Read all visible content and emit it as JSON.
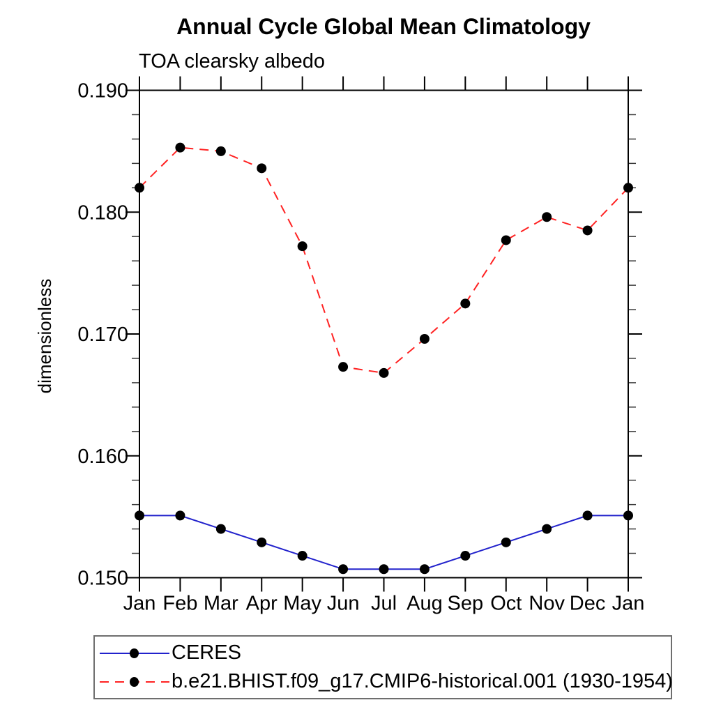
{
  "chart_data": {
    "type": "line",
    "title": "Annual Cycle Global Mean Climatology",
    "subtitle": "TOA clearsky albedo",
    "ylabel": "dimensionless",
    "xlabel": "",
    "x_categories": [
      "Jan",
      "Feb",
      "Mar",
      "Apr",
      "May",
      "Jun",
      "Jul",
      "Aug",
      "Sep",
      "Oct",
      "Nov",
      "Dec",
      "Jan"
    ],
    "ylim": [
      0.15,
      0.19
    ],
    "ytick_major_values": [
      0.15,
      0.16,
      0.17,
      0.18,
      0.19
    ],
    "ytick_major_labels": [
      "0.150",
      "0.160",
      "0.170",
      "0.180",
      "0.190"
    ],
    "ytick_minor_step": 0.002,
    "grid": false,
    "legend_position": "bottom-left",
    "axis_color": "#000000",
    "series": [
      {
        "name": "CERES",
        "color": "#2222cc",
        "line_style": "solid",
        "marker": "circle",
        "marker_color": "#000000",
        "values": [
          0.1551,
          0.1551,
          0.154,
          0.1529,
          0.1518,
          0.1507,
          0.1507,
          0.1507,
          0.1518,
          0.1529,
          0.154,
          0.1551,
          0.1551
        ]
      },
      {
        "name": "b.e21.BHIST.f09_g17.CMIP6-historical.001 (1930-1954)",
        "color": "#ff2222",
        "line_style": "dashed",
        "marker": "circle",
        "marker_color": "#000000",
        "values": [
          0.182,
          0.1853,
          0.185,
          0.1836,
          0.1772,
          0.1673,
          0.1668,
          0.1696,
          0.1725,
          0.1777,
          0.1796,
          0.1785,
          0.182
        ]
      }
    ]
  }
}
